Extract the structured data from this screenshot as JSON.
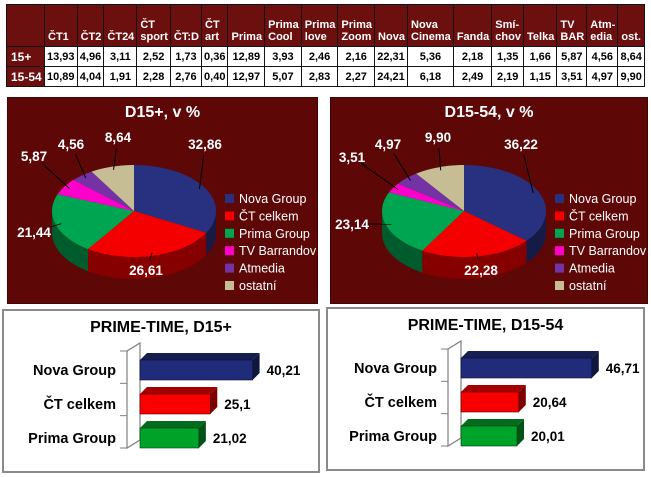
{
  "palette": {
    "panel_maroon": "#5e0707",
    "table_header_maroon": "#6b0f0f",
    "table_border": "#141414",
    "white_text": "#ffffff",
    "black_text": "#000000",
    "panel_border_gray": "#8a8a8a",
    "leader_line": "#000000"
  },
  "chart_data": [
    {
      "type": "table",
      "columns": [
        "ČT1",
        "ČT2",
        "ČT24",
        "ČT\nsport",
        "ČT:D",
        "ČT\nart",
        "Prima",
        "Prima\nCool",
        "Prima\nlove",
        "Prima\nZoom",
        "Nova",
        "Nova\nCinema",
        "Fanda",
        "Smí-\nchov",
        "Telka",
        "TV\nBAR",
        "Atm-\nedia",
        "ost."
      ],
      "rows": [
        {
          "label": "15+",
          "values": [
            "13,93",
            "4,96",
            "3,11",
            "2,52",
            "1,73",
            "0,36",
            "12,89",
            "3,93",
            "2,46",
            "2,16",
            "22,31",
            "5,36",
            "2,18",
            "1,35",
            "1,66",
            "5,87",
            "4,56",
            "8,64"
          ]
        },
        {
          "label": "15-54",
          "values": [
            "10,89",
            "4,04",
            "1,91",
            "2,28",
            "2,76",
            "0,40",
            "12,97",
            "5,07",
            "2,83",
            "2,27",
            "24,21",
            "6,18",
            "2,49",
            "2,19",
            "1,15",
            "3,51",
            "4,97",
            "9,90"
          ]
        }
      ]
    },
    {
      "type": "pie",
      "title": "D15+, v %",
      "labels": [
        "Nova Group",
        "ČT celkem",
        "Prima Group",
        "TV Barrandov",
        "Atmedia",
        "ostatní"
      ],
      "values": [
        32.86,
        26.61,
        21.44,
        5.87,
        4.56,
        8.64
      ],
      "display_values": [
        "32,86",
        "26,61",
        "21,44",
        "5,87",
        "4,56",
        "8,64"
      ],
      "colors": [
        "#283180",
        "#f40000",
        "#00a551",
        "#ff00cc",
        "#7333a5",
        "#c6bd95"
      ],
      "legend_position": "right",
      "style": "3d"
    },
    {
      "type": "pie",
      "title": "D15-54, v %",
      "labels": [
        "Nova Group",
        "ČT celkem",
        "Prima Group",
        "TV Barrandov",
        "Atmedia",
        "ostatní"
      ],
      "values": [
        36.22,
        22.28,
        23.14,
        3.51,
        4.97,
        9.9
      ],
      "display_values": [
        "36,22",
        "22,28",
        "23,14",
        "3,51",
        "4,97",
        "9,90"
      ],
      "colors": [
        "#283180",
        "#f40000",
        "#00a551",
        "#ff00cc",
        "#7333a5",
        "#c6bd95"
      ],
      "legend_position": "right",
      "style": "3d"
    },
    {
      "type": "bar",
      "title": "PRIME-TIME, D15+",
      "orientation": "horizontal",
      "categories": [
        "Nova Group",
        "ČT celkem",
        "Prima Group"
      ],
      "values": [
        40.21,
        25.1,
        21.02
      ],
      "display_values": [
        "40,21",
        "25,1",
        "21,02"
      ],
      "colors": [
        "#202c7a",
        "#f80000",
        "#00a32a"
      ],
      "xlim": [
        0,
        50
      ],
      "grid": false,
      "style": "3d"
    },
    {
      "type": "bar",
      "title": "PRIME-TIME, D15-54",
      "orientation": "horizontal",
      "categories": [
        "Nova Group",
        "ČT celkem",
        "Prima Group"
      ],
      "values": [
        46.71,
        20.64,
        20.01
      ],
      "display_values": [
        "46,71",
        "20,64",
        "20,01"
      ],
      "colors": [
        "#202c7a",
        "#f80000",
        "#00a32a"
      ],
      "xlim": [
        0,
        50
      ],
      "grid": false,
      "style": "3d"
    }
  ]
}
